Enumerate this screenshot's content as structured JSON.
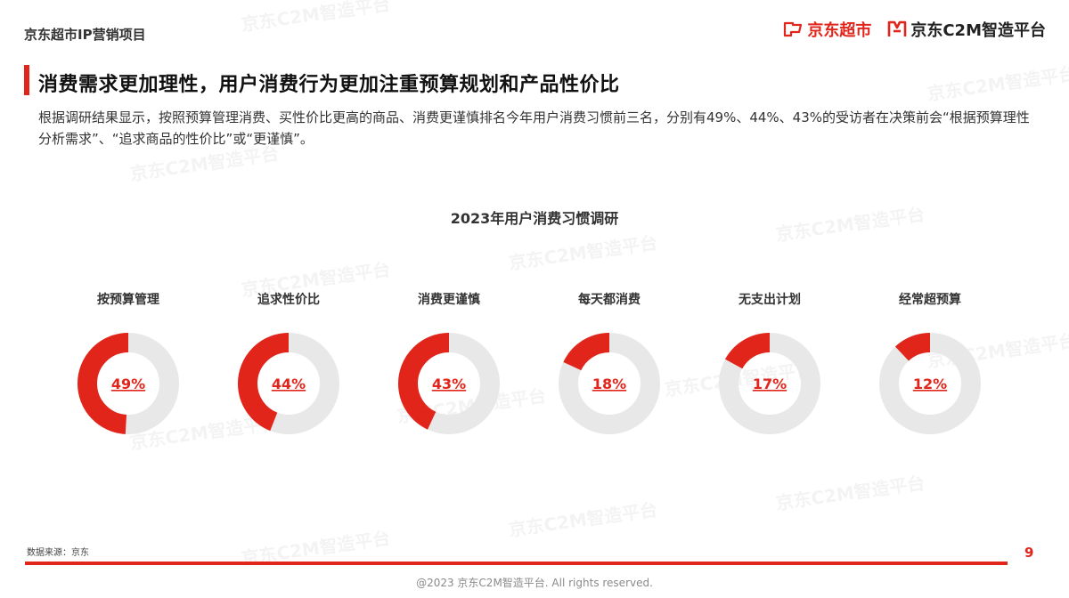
{
  "header": {
    "project_label": "京东超市IP营销项目",
    "logo_supermarket": "京东超市",
    "logo_c2m": "京东C2M智造平台"
  },
  "section": {
    "title": "消费需求更加理性，用户消费行为更加注重预算规划和产品性价比",
    "description": "根据调研结果显示，按照预算管理消费、买性价比更高的商品、消费更谨慎排名今年用户消费习惯前三名，分别有49%、44%、43%的受访者在决策前会“根据预算理性分析需求”、“追求商品的性价比”或“更谨慎”。"
  },
  "chart_data": {
    "type": "pie",
    "title": "2023年用户消费习惯调研",
    "categories": [
      "按预算管理",
      "追求性价比",
      "消费更谨慎",
      "每天都消费",
      "无支出计划",
      "经常超预算"
    ],
    "values": [
      49,
      44,
      43,
      18,
      17,
      12
    ],
    "value_labels": [
      "49%",
      "44%",
      "43%",
      "18%",
      "17%",
      "12%"
    ],
    "unit": "%",
    "colors": {
      "filled": "#e1251b",
      "track": "#e8e8e8"
    }
  },
  "footer": {
    "source": "数据来源：京东",
    "page_number": "9",
    "copyright": "@2023 京东C2M智造平台. All rights reserved."
  },
  "watermark": {
    "text": "京东C2M智造平台"
  }
}
